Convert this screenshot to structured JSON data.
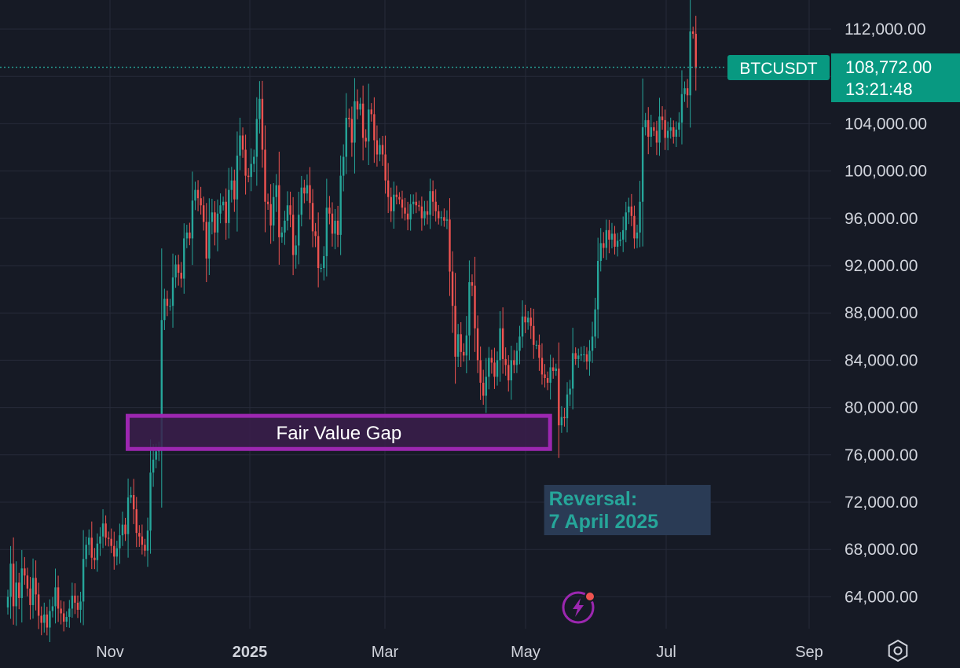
{
  "colors": {
    "background": "#161a25",
    "grid": "#262b39",
    "text": "#d1d4dc",
    "up": "#26a69a",
    "down": "#ef5350",
    "price_line": "#26a69a",
    "fvg_border": "#9c27b0",
    "fvg_fill": "#3b1f4c",
    "reversal_bg": "#2a3b55",
    "reversal_text": "#26a69a",
    "badge_bg": "#089981",
    "badge_text": "#ffffff",
    "icon": "#9c27b0",
    "icon_dot": "#ef5350"
  },
  "chart_data": {
    "type": "candlestick",
    "symbol": "BTCUSDT",
    "last_price": "108,772.00",
    "countdown": "13:21:48",
    "last_price_value": 108772,
    "price_ticks": [
      "112,000.00",
      "104,000.00",
      "100,000.00",
      "96,000.00",
      "92,000.00",
      "88,000.00",
      "84,000.00",
      "80,000.00",
      "76,000.00",
      "72,000.00",
      "68,000.00",
      "64,000.00"
    ],
    "time_ticks": [
      {
        "label": "Nov",
        "bold": false
      },
      {
        "label": "2025",
        "bold": true
      },
      {
        "label": "Mar",
        "bold": false
      },
      {
        "label": "May",
        "bold": false
      },
      {
        "label": "Jul",
        "bold": false
      },
      {
        "label": "Sep",
        "bold": false
      }
    ],
    "ylim": [
      60500,
      113500
    ],
    "grid": true,
    "series": [
      {
        "date": "2024-09-25",
        "points": [
          64000,
          66800,
          63200,
          65200,
          63900,
          66400,
          65800,
          64700,
          63300,
          65600,
          64200,
          62400,
          61800,
          62500,
          61400,
          62800,
          63200,
          64800,
          63000,
          62600,
          61900,
          62300,
          63000,
          64100,
          63500,
          62900,
          63600,
          67200,
          68400,
          69000,
          67300,
          67100,
          68500,
          69100,
          70200,
          69000,
          68900,
          68300,
          67400,
          68100,
          69200,
          70100,
          69300,
          72400,
          72600,
          71400,
          69400,
          69100,
          68400,
          67900,
          69600,
          74500,
          75600,
          76300,
          76500,
          87400,
          89200,
          88600,
          88600,
          91000,
          92100,
          91400,
          90900,
          94300,
          94800,
          94300,
          97500,
          98400,
          97700,
          97100,
          95700,
          92600,
          95700,
          96500,
          94800,
          96400,
          97100,
          97400,
          95600,
          98400,
          99200,
          97600,
          101300,
          103000,
          101800,
          99600,
          99500,
          100600,
          101200,
          104400,
          106100,
          101800,
          97400,
          97200,
          95400,
          97800,
          98800,
          94400,
          94800,
          95800,
          97100,
          96300,
          92900,
          93700,
          96300,
          98600,
          98100,
          98800,
          97300,
          94900,
          94500,
          91800,
          91800,
          92800,
          96900,
          96400,
          94700,
          95800,
          94600,
          99600,
          101200,
          104500,
          104400,
          102400,
          105900,
          105200,
          105700,
          102800,
          102500,
          105200,
          104800,
          102600,
          101400,
          102200,
          101400,
          99200,
          97800,
          96600,
          98000,
          97800,
          97600,
          96900,
          96400,
          95900,
          97200,
          97400,
          97100,
          97000,
          96000,
          96600,
          96300,
          98300,
          97400,
          96600,
          96000,
          96100,
          95800,
          95900,
          91500,
          88600,
          84300,
          86200,
          84700,
          84400,
          86100,
          90600,
          90300,
          86700,
          84000,
          82100,
          81000,
          82600,
          84200,
          83800,
          82600,
          84000,
          86700,
          84100,
          83600,
          82300,
          84000,
          83600,
          84800,
          86000,
          87700,
          87200,
          87600,
          86900,
          85300,
          85300,
          84200,
          82800,
          82500,
          82100,
          83400,
          83100,
          83300,
          78500,
          79200,
          79100,
          81100,
          81600,
          84600,
          84100,
          84400,
          84500,
          84500,
          83900,
          84800,
          86000,
          88300,
          92400,
          93900,
          93500,
          95000,
          94200,
          94700,
          93600,
          94100,
          94200,
          95000,
          96500,
          97000,
          96200,
          94300,
          94800,
          97400,
          103700,
          104300,
          102900,
          103700,
          103400,
          102400,
          104600,
          104300,
          102800,
          103400,
          103700,
          102900,
          103500,
          104100,
          106500,
          107000,
          106400,
          111800,
          111600,
          108700
        ]
      }
    ],
    "annotations": [
      {
        "type": "zone",
        "label": "Fair Value Gap",
        "price_top": 79300,
        "price_bottom": 76500,
        "date_start": "2024-11-06",
        "date_end": "2025-04-08"
      },
      {
        "type": "text",
        "lines": [
          "Reversal:",
          "7 April 2025"
        ],
        "date": "2025-04-07"
      }
    ]
  },
  "toolbar": {
    "settings_icon": "hexagon-settings-icon",
    "flash_icon": "lightning-alert-icon"
  }
}
